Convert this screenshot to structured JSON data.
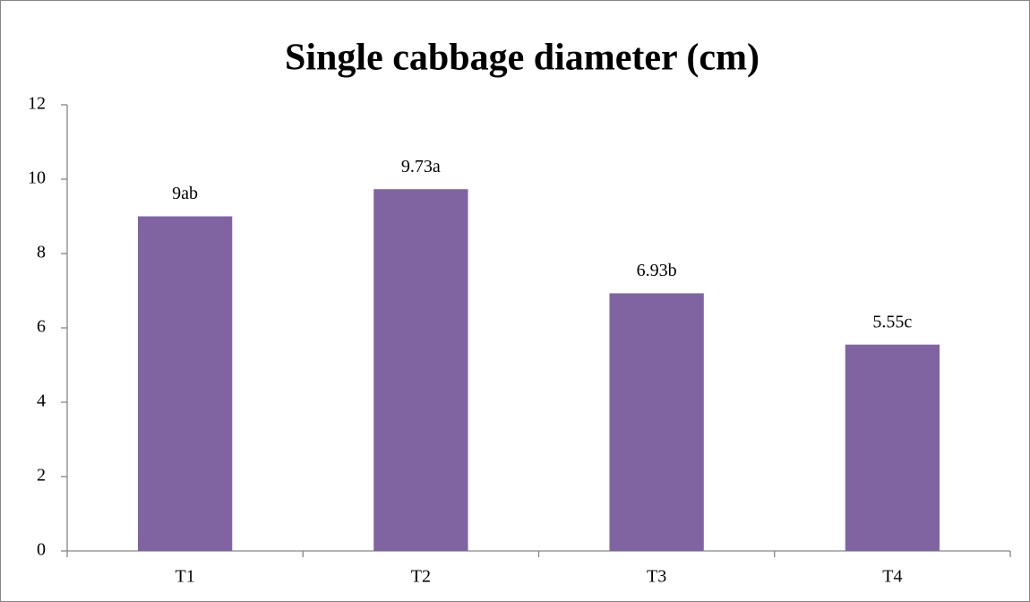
{
  "chart_data": {
    "type": "bar",
    "title": "Single cabbage diameter (cm)",
    "categories": [
      "T1",
      "T2",
      "T3",
      "T4"
    ],
    "values": [
      9,
      9.73,
      6.93,
      5.55
    ],
    "value_labels": [
      "9ab",
      "9.73a",
      "6.93b",
      "5.55c"
    ],
    "color": "#8064a2",
    "ylim": [
      0,
      12
    ],
    "yticks": [
      0,
      2,
      4,
      6,
      8,
      10,
      12
    ],
    "grid": false
  }
}
